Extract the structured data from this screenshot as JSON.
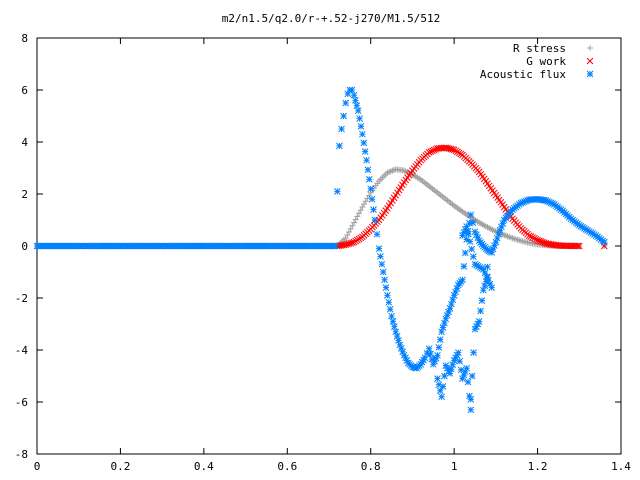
{
  "chart_data": {
    "type": "scatter",
    "title": "m2/n1.5/q2.0/r-+.52-j270/M1.5/512",
    "xlabel": "",
    "ylabel": "",
    "xlim": [
      0,
      1.4
    ],
    "ylim": [
      -8,
      8
    ],
    "x_ticks": [
      "0",
      "0.2",
      "0.4",
      "0.6",
      "0.8",
      "1",
      "1.2",
      "1.4"
    ],
    "y_ticks": [
      "8",
      "6",
      "4",
      "2",
      "0",
      "-2",
      "-4",
      "-6",
      "-8"
    ],
    "legend_position": "top-right",
    "grid": false,
    "series": [
      {
        "name": "R stress",
        "marker": "plus",
        "color": "#a0a0a0",
        "points": [
          [
            0.72,
            0.0
          ],
          [
            0.74,
            0.3
          ],
          [
            0.76,
            0.9
          ],
          [
            0.78,
            1.5
          ],
          [
            0.8,
            2.05
          ],
          [
            0.82,
            2.5
          ],
          [
            0.84,
            2.82
          ],
          [
            0.86,
            2.95
          ],
          [
            0.88,
            2.9
          ],
          [
            0.9,
            2.75
          ],
          [
            0.92,
            2.55
          ],
          [
            0.94,
            2.3
          ],
          [
            0.96,
            2.05
          ],
          [
            0.98,
            1.8
          ],
          [
            1.0,
            1.55
          ],
          [
            1.02,
            1.32
          ],
          [
            1.04,
            1.1
          ],
          [
            1.06,
            0.9
          ],
          [
            1.08,
            0.72
          ],
          [
            1.1,
            0.56
          ],
          [
            1.12,
            0.42
          ],
          [
            1.14,
            0.3
          ],
          [
            1.16,
            0.2
          ],
          [
            1.18,
            0.12
          ],
          [
            1.2,
            0.06
          ],
          [
            1.22,
            0.03
          ],
          [
            1.24,
            0.01
          ],
          [
            1.26,
            0.0
          ],
          [
            1.3,
            0.0
          ],
          [
            1.36,
            0.0
          ]
        ]
      },
      {
        "name": "G work",
        "marker": "cross",
        "color": "#ff0000",
        "points": [
          [
            0.72,
            0.0
          ],
          [
            0.74,
            0.05
          ],
          [
            0.76,
            0.15
          ],
          [
            0.78,
            0.35
          ],
          [
            0.8,
            0.65
          ],
          [
            0.82,
            1.0
          ],
          [
            0.84,
            1.45
          ],
          [
            0.86,
            1.95
          ],
          [
            0.88,
            2.45
          ],
          [
            0.9,
            2.9
          ],
          [
            0.92,
            3.3
          ],
          [
            0.94,
            3.6
          ],
          [
            0.96,
            3.75
          ],
          [
            0.98,
            3.78
          ],
          [
            1.0,
            3.7
          ],
          [
            1.02,
            3.5
          ],
          [
            1.04,
            3.2
          ],
          [
            1.06,
            2.85
          ],
          [
            1.08,
            2.4
          ],
          [
            1.1,
            1.95
          ],
          [
            1.12,
            1.5
          ],
          [
            1.14,
            1.05
          ],
          [
            1.16,
            0.68
          ],
          [
            1.18,
            0.4
          ],
          [
            1.2,
            0.22
          ],
          [
            1.22,
            0.1
          ],
          [
            1.24,
            0.04
          ],
          [
            1.26,
            0.01
          ],
          [
            1.3,
            0.0
          ],
          [
            1.36,
            0.0
          ]
        ]
      },
      {
        "name": "Acoustic flux",
        "marker": "star",
        "color": "#0080ff",
        "points": [
          [
            0.0,
            0.0
          ],
          [
            0.05,
            0.0
          ],
          [
            0.1,
            0.0
          ],
          [
            0.15,
            0.0
          ],
          [
            0.2,
            0.0
          ],
          [
            0.25,
            0.0
          ],
          [
            0.3,
            0.0
          ],
          [
            0.35,
            0.0
          ],
          [
            0.4,
            0.0
          ],
          [
            0.45,
            0.0
          ],
          [
            0.5,
            0.0
          ],
          [
            0.55,
            0.0
          ],
          [
            0.6,
            0.0
          ],
          [
            0.65,
            0.0
          ],
          [
            0.7,
            0.0
          ],
          [
            0.715,
            0.0
          ],
          [
            0.72,
            2.1
          ],
          [
            0.725,
            3.85
          ],
          [
            0.73,
            4.5
          ],
          [
            0.735,
            5.0
          ],
          [
            0.74,
            5.5
          ],
          [
            0.745,
            5.85
          ],
          [
            0.75,
            6.0
          ],
          [
            0.755,
            6.0
          ],
          [
            0.76,
            5.8
          ],
          [
            0.77,
            5.2
          ],
          [
            0.78,
            4.3
          ],
          [
            0.79,
            3.3
          ],
          [
            0.8,
            2.2
          ],
          [
            0.81,
            1.0
          ],
          [
            0.82,
            -0.1
          ],
          [
            0.83,
            -1.0
          ],
          [
            0.84,
            -1.9
          ],
          [
            0.85,
            -2.7
          ],
          [
            0.86,
            -3.3
          ],
          [
            0.87,
            -3.8
          ],
          [
            0.88,
            -4.2
          ],
          [
            0.89,
            -4.5
          ],
          [
            0.9,
            -4.65
          ],
          [
            0.91,
            -4.7
          ],
          [
            0.92,
            -4.55
          ],
          [
            0.93,
            -4.3
          ],
          [
            0.94,
            -3.95
          ],
          [
            0.95,
            -4.55
          ],
          [
            0.96,
            -4.2
          ],
          [
            0.97,
            -3.3
          ],
          [
            0.98,
            -2.8
          ],
          [
            0.99,
            -2.4
          ],
          [
            1.0,
            -1.9
          ],
          [
            1.01,
            -1.5
          ],
          [
            1.02,
            -1.3
          ],
          [
            1.03,
            0.25
          ],
          [
            1.04,
            1.2
          ],
          [
            1.045,
            0.9
          ],
          [
            1.05,
            0.55
          ],
          [
            1.06,
            0.2
          ],
          [
            1.07,
            0.0
          ],
          [
            1.08,
            -0.15
          ],
          [
            1.09,
            -0.25
          ],
          [
            1.1,
            0.15
          ],
          [
            1.11,
            0.6
          ],
          [
            1.12,
            1.0
          ],
          [
            1.14,
            1.4
          ],
          [
            1.16,
            1.65
          ],
          [
            1.18,
            1.78
          ],
          [
            1.2,
            1.8
          ],
          [
            1.22,
            1.75
          ],
          [
            1.24,
            1.6
          ],
          [
            1.26,
            1.35
          ],
          [
            1.28,
            1.05
          ],
          [
            1.3,
            0.8
          ],
          [
            1.32,
            0.6
          ],
          [
            1.34,
            0.4
          ],
          [
            1.36,
            0.15
          ],
          [
            0.96,
            -5.1
          ],
          [
            0.97,
            -5.8
          ],
          [
            0.98,
            -4.6
          ],
          [
            0.99,
            -4.9
          ],
          [
            1.0,
            -4.4
          ],
          [
            1.01,
            -4.1
          ],
          [
            1.02,
            -5.1
          ],
          [
            1.03,
            -4.7
          ],
          [
            1.04,
            -6.3
          ],
          [
            1.04,
            -5.9
          ],
          [
            1.05,
            -3.2
          ],
          [
            1.06,
            -2.9
          ],
          [
            1.07,
            -1.7
          ],
          [
            1.08,
            -1.2
          ],
          [
            1.02,
            0.4
          ],
          [
            1.03,
            0.75
          ],
          [
            1.05,
            -0.7
          ],
          [
            1.07,
            -0.9
          ],
          [
            1.09,
            -1.6
          ],
          [
            1.08,
            -0.8
          ]
        ]
      }
    ]
  }
}
